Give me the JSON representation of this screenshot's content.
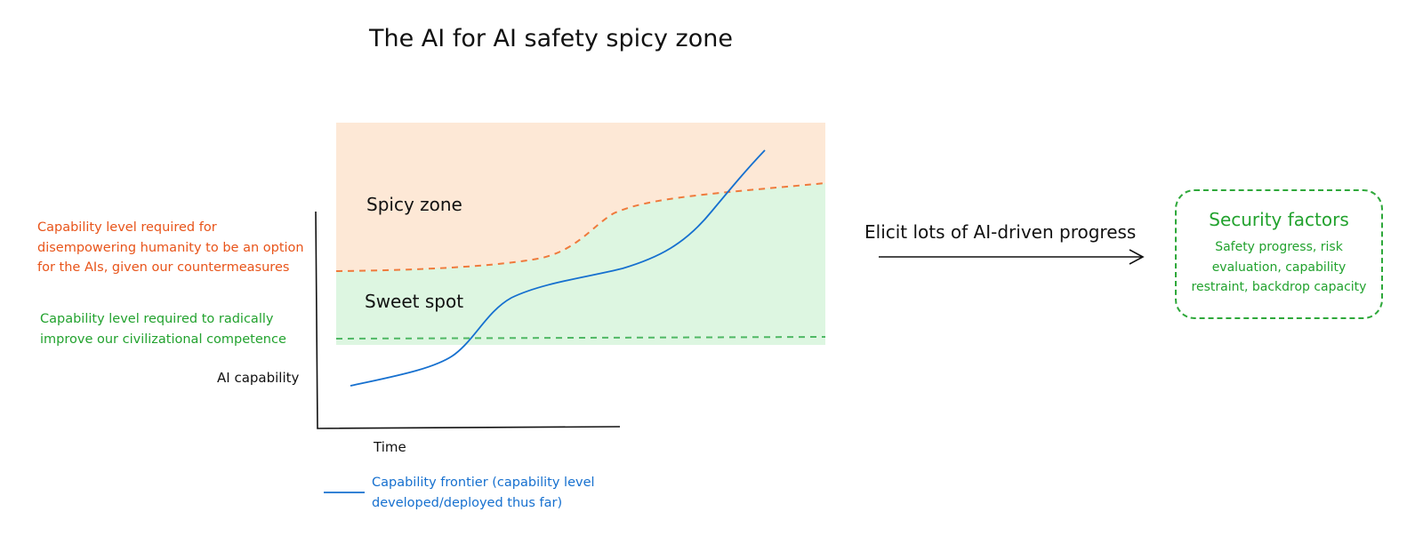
{
  "title": "The AI for AI safety spicy zone",
  "zones": {
    "spicy": "Spicy zone",
    "sweet": "Sweet spot"
  },
  "thresholds": {
    "disempower": {
      "lines": [
        "Capability level required for",
        "disempowering humanity to be an option",
        "for the AIs, given our countermeasures"
      ],
      "color": "#e8541a"
    },
    "competence": {
      "lines": [
        "Capability level required to radically",
        "improve our civilizational competence"
      ],
      "color": "#22a22e"
    }
  },
  "axes": {
    "y_label": "AI capability",
    "x_label": "Time"
  },
  "legend": {
    "lines": [
      "Capability frontier (capability level",
      "developed/deployed thus far)"
    ],
    "color": "#1670cf"
  },
  "arrow_label": "Elicit lots of AI-driven progress",
  "security_factors": {
    "title": "Security factors",
    "lines": [
      "Safety progress, risk",
      "evaluation, capability",
      "restraint, backdrop capacity"
    ]
  },
  "colors": {
    "spicy_fill": "#fde8d6",
    "sweet_fill": "#ddf6e1",
    "frontier": "#1670cf",
    "disempower_line": "#ef7a3c",
    "competence_line": "#4fb864"
  }
}
